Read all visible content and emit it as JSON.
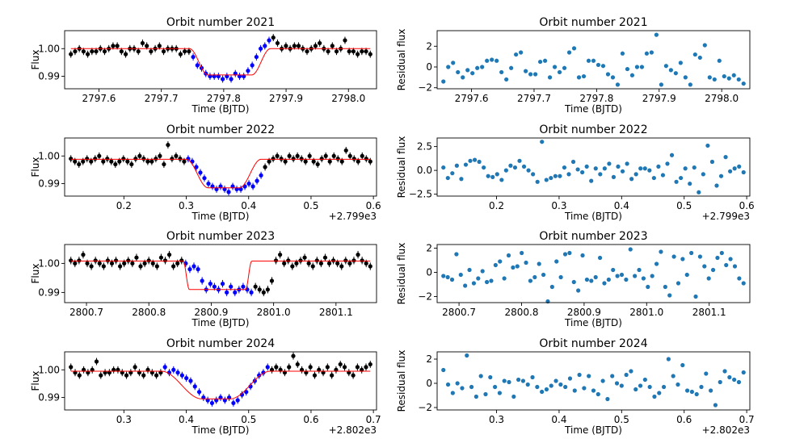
{
  "chart_data": [
    {
      "type": "scatter",
      "title": "Orbit number 2021",
      "xlabel": "Time (BJTD)",
      "ylabel": "Flux",
      "x_offset_label": "",
      "xlim": [
        2797.545,
        2798.045
      ],
      "ylim": [
        0.9855,
        1.0065
      ],
      "xticks": [
        2797.6,
        2797.7,
        2797.8,
        2797.9,
        2798.0
      ],
      "xtick_labels": [
        "2797.6",
        "2797.7",
        "2797.8",
        "2797.9",
        "2798.0"
      ],
      "yticks": [
        0.99,
        1.0
      ],
      "ytick_labels": [
        "0.99",
        "1.00"
      ],
      "model": {
        "baseline": 1.0,
        "depth": 0.0095,
        "t1": 2797.745,
        "t2": 2797.775,
        "t3": 2797.845,
        "t4": 2797.875
      },
      "flux": [
        0.998,
        0.999,
        1.0,
        0.999,
        0.998,
        0.999,
        0.999,
        1.0,
        0.999,
        1.0,
        1.001,
        1.001,
        0.999,
        0.998,
        1.0,
        1.0,
        0.999,
        1.002,
        1.001,
        0.999,
        1.0,
        1.001,
        0.999,
        1.0,
        1.0,
        1.0,
        0.998,
        0.999,
        0.999,
        0.997,
        0.994,
        0.993,
        0.991,
        0.99,
        0.99,
        0.99,
        0.989,
        0.99,
        0.989,
        0.991,
        0.99,
        0.99,
        0.992,
        0.994,
        0.997,
        1.0,
        1.001,
        1.003,
        1.004,
        1.002,
        1.0,
        1.001,
        1.0,
        1.001,
        1.001,
        1.0,
        0.999,
        1.0,
        1.001,
        1.002,
        1.0,
        0.999,
        1.001,
        0.999,
        1.0,
        1.003,
        0.999,
        0.999,
        0.998,
        0.999,
        0.999,
        0.998
      ],
      "flux_err": 0.0013
    },
    {
      "type": "scatter",
      "title": "Orbit number 2021",
      "xlabel": "Time (BJTD)",
      "ylabel": "Residual flux",
      "x_offset_label": "",
      "xlim": [
        2797.545,
        2798.045
      ],
      "ylim": [
        -2.1,
        3.5
      ],
      "xticks": [
        2797.6,
        2797.7,
        2797.8,
        2797.9,
        2798.0
      ],
      "xtick_labels": [
        "2797.6",
        "2797.7",
        "2797.8",
        "2797.9",
        "2798.0"
      ],
      "yticks": [
        -2,
        0,
        2
      ],
      "ytick_labels": [
        "−2",
        "0",
        "2"
      ],
      "residuals": [
        -1.4,
        0.0,
        0.4,
        -0.5,
        -1.0,
        -0.3,
        -0.6,
        -0.1,
        0.0,
        0.6,
        0.7,
        0.6,
        -0.5,
        -1.2,
        -0.1,
        1.2,
        1.4,
        -0.4,
        -0.7,
        -0.7,
        0.5,
        0.6,
        -1.0,
        0.0,
        -0.5,
        -0.1,
        1.4,
        1.8,
        -1.0,
        -0.9,
        0.6,
        0.6,
        0.2,
        0.1,
        -0.7,
        -1.0,
        -1.7,
        1.3,
        -0.2,
        -0.8,
        0.0,
        0.0,
        1.3,
        1.4,
        3.1,
        -1.7,
        0.1,
        -0.3,
        -0.6,
        0.4,
        -1.0,
        -1.7,
        1.2,
        0.9,
        2.1,
        -1.0,
        -1.2,
        0.6,
        -0.9,
        -1.1,
        -0.8,
        -1.2,
        -1.6
      ]
    },
    {
      "type": "scatter",
      "title": "Orbit number 2022",
      "xlabel": "Time (BJTD)",
      "ylabel": "Flux",
      "x_offset_label": "+2.799e3",
      "xlim": [
        0.105,
        0.605
      ],
      "ylim": [
        0.9855,
        1.0065
      ],
      "xticks": [
        0.2,
        0.3,
        0.4,
        0.5,
        0.6
      ],
      "xtick_labels": [
        "0.2",
        "0.3",
        "0.4",
        "0.5",
        "0.6"
      ],
      "yticks": [
        0.99,
        1.0
      ],
      "ytick_labels": [
        "0.99",
        "1.00"
      ],
      "model": {
        "baseline": 0.9988,
        "depth": 0.0103,
        "t1": 0.3,
        "t2": 0.335,
        "t3": 0.385,
        "t4": 0.42
      },
      "flux": [
        0.999,
        0.998,
        0.997,
        0.998,
        0.999,
        0.998,
        0.999,
        1.0,
        0.998,
        0.999,
        0.998,
        0.997,
        0.998,
        0.999,
        0.998,
        0.997,
        0.999,
        1.0,
        0.999,
        0.998,
        0.998,
        0.999,
        1.0,
        0.997,
        1.004,
        0.999,
        1.0,
        0.999,
        0.998,
        0.999,
        0.998,
        0.996,
        0.994,
        0.992,
        0.99,
        0.989,
        0.988,
        0.989,
        0.988,
        0.987,
        0.989,
        0.988,
        0.988,
        0.989,
        0.99,
        0.989,
        0.991,
        0.993,
        0.996,
        0.998,
        0.999,
        1.0,
        0.999,
        0.998,
        1.0,
        0.999,
        1.0,
        0.999,
        0.998,
        1.0,
        0.998,
        0.997,
        0.999,
        1.0,
        0.998,
        1.0,
        0.999,
        0.998,
        1.002,
        1.0,
        0.999,
        0.998,
        1.0,
        0.999,
        0.998
      ],
      "flux_err": 0.0013
    },
    {
      "type": "scatter",
      "title": "Orbit number 2022",
      "xlabel": "Time (BJTD)",
      "ylabel": "Residual flux",
      "x_offset_label": "+2.799e3",
      "xlim": [
        0.105,
        0.605
      ],
      "ylim": [
        -2.7,
        3.4
      ],
      "xticks": [
        0.2,
        0.3,
        0.4,
        0.5,
        0.6
      ],
      "xtick_labels": [
        "0.2",
        "0.3",
        "0.4",
        "0.5",
        "0.6"
      ],
      "yticks": [
        -2.5,
        0.0,
        2.5
      ],
      "ytick_labels": [
        "−2.5",
        "0.0",
        "2.5"
      ],
      "residuals": [
        0.3,
        -0.8,
        -0.3,
        0.5,
        -0.9,
        0.6,
        1.0,
        1.1,
        0.9,
        0.3,
        -0.6,
        -0.7,
        -0.4,
        -1.0,
        0.0,
        0.5,
        0.3,
        1.0,
        0.4,
        0.0,
        -0.4,
        -1.2,
        3.0,
        -1.0,
        -0.8,
        -0.6,
        -0.6,
        0.3,
        -0.4,
        0.9,
        0.1,
        -0.2,
        0.4,
        -1.1,
        0.2,
        -0.4,
        0.2,
        0.7,
        -0.7,
        0.4,
        -0.1,
        0.7,
        -0.9,
        -0.4,
        0.2,
        0.2,
        0.0,
        -0.8,
        0.4,
        -0.5,
        0.7,
        1.6,
        -1.2,
        -0.8,
        0.2,
        -1.4,
        0.3,
        -2.3,
        -0.4,
        2.6,
        0.9,
        -1.6,
        -0.6,
        1.4,
        -0.1,
        0.2,
        0.4,
        -0.2
      ]
    },
    {
      "type": "scatter",
      "title": "Orbit number 2023",
      "xlabel": "Time (BJTD)",
      "ylabel": "Flux",
      "x_offset_label": "",
      "xlim": [
        2800.665,
        2801.165
      ],
      "ylim": [
        0.9865,
        1.0065
      ],
      "xticks": [
        2800.7,
        2800.8,
        2800.9,
        2801.0,
        2801.1
      ],
      "xtick_labels": [
        "2800.7",
        "2800.8",
        "2800.9",
        "2801.0",
        "2801.1"
      ],
      "yticks": [
        0.99,
        1.0
      ],
      "ytick_labels": [
        "0.99",
        "1.00"
      ],
      "model": {
        "baseline": 1.0008,
        "depth": 0.0098,
        "t1": 2800.855,
        "t2": 2800.865,
        "t3": 2800.955,
        "t4": 2800.965
      },
      "flux": [
        1.001,
        1.0,
        1.001,
        1.003,
        1.0,
        0.999,
        1.001,
        1.0,
        0.999,
        1.001,
        1.0,
        1.001,
        0.999,
        1.0,
        1.001,
        1.0,
        1.002,
        0.999,
        1.0,
        1.001,
        1.0,
        0.999,
        1.002,
        1.001,
        1.003,
        0.999,
        1.0,
        1.001,
        1.0,
        0.998,
        0.999,
        0.998,
        0.994,
        0.991,
        0.993,
        0.992,
        0.991,
        0.993,
        0.99,
        0.992,
        0.99,
        0.991,
        0.992,
        0.991,
        0.99,
        0.992,
        0.991,
        0.99,
        0.991,
        0.994,
        1.001,
        1.003,
        1.0,
        1.001,
        0.999,
        1.0,
        1.001,
        1.002,
        1.0,
        0.999,
        1.001,
        1.0,
        1.002,
        1.0,
        1.001,
        1.0,
        0.999,
        1.001,
        1.0,
        1.001,
        1.003,
        1.001,
        1.0,
        0.999
      ],
      "flux_err": 0.0013
    },
    {
      "type": "scatter",
      "title": "Orbit number 2023",
      "xlabel": "Time (BJTD)",
      "ylabel": "Residual flux",
      "x_offset_label": "",
      "xlim": [
        2800.665,
        2801.165
      ],
      "ylim": [
        -2.5,
        2.3
      ],
      "xticks": [
        2800.7,
        2800.8,
        2800.9,
        2801.0,
        2801.1
      ],
      "xtick_labels": [
        "2800.7",
        "2800.8",
        "2800.9",
        "2801.0",
        "2801.1"
      ],
      "yticks": [
        -2,
        0,
        2
      ],
      "ytick_labels": [
        "−2",
        "0",
        "2"
      ],
      "residuals": [
        -0.3,
        -0.4,
        -0.6,
        1.5,
        -0.2,
        -1.1,
        0.2,
        -0.9,
        -0.5,
        0.1,
        -0.8,
        -0.7,
        0.6,
        0.9,
        -0.5,
        1.4,
        0.4,
        0.5,
        1.6,
        0.8,
        -0.7,
        -0.4,
        0.7,
        -0.2,
        -2.4,
        -1.2,
        0.9,
        -0.4,
        1.5,
        1.6,
        -0.8,
        -1.5,
        1.4,
        -0.6,
        -0.7,
        -0.4,
        1.2,
        -0.9,
        -0.6,
        0.2,
        -0.3,
        -0.2,
        -0.6,
        1.9,
        -0.3,
        0.2,
        -0.5,
        -1.2,
        -0.3,
        0.7,
        1.7,
        -1.2,
        -1.9,
        1.3,
        -0.9,
        1.1,
        -0.2,
        1.6,
        -2.0,
        1.3,
        0.5,
        -0.5,
        0.2,
        1.2,
        1.6,
        0.6,
        1.1,
        0.5,
        -0.5,
        -0.9
      ],
      "residual_x_start": 2800.69
    },
    {
      "type": "scatter",
      "title": "Orbit number 2024",
      "xlabel": "Time (BJTD)",
      "ylabel": "Flux",
      "x_offset_label": "+2.802e3",
      "xlim": [
        0.205,
        0.705
      ],
      "ylim": [
        0.9855,
        1.0065
      ],
      "xticks": [
        0.3,
        0.4,
        0.5,
        0.6,
        0.7
      ],
      "xtick_labels": [
        "0.3",
        "0.4",
        "0.5",
        "0.6",
        "0.7"
      ],
      "yticks": [
        0.99,
        1.0
      ],
      "ytick_labels": [
        "0.99",
        "1.00"
      ],
      "model": {
        "baseline": 0.9995,
        "depth": 0.01,
        "t1": 0.36,
        "t2": 0.425,
        "t3": 0.47,
        "t4": 0.535
      },
      "flux": [
        1.001,
        0.999,
        0.998,
        1.0,
        0.999,
        1.0,
        1.003,
        0.998,
        0.999,
        0.999,
        1.0,
        1.0,
        0.999,
        0.998,
        0.999,
        1.001,
        0.999,
        0.998,
        1.0,
        0.999,
        0.998,
        0.999,
        1.001,
        0.999,
        1.0,
        0.999,
        0.998,
        0.997,
        0.996,
        0.994,
        0.992,
        0.99,
        0.989,
        0.988,
        0.989,
        0.99,
        0.989,
        0.99,
        0.988,
        0.989,
        0.991,
        0.992,
        0.994,
        0.996,
        0.998,
        0.999,
        1.001,
        1.0,
        1.001,
        1.0,
        0.999,
        1.001,
        1.005,
        1.002,
        1.0,
        0.999,
        1.001,
        0.998,
        1.0,
        0.999,
        1.001,
        0.998,
        1.0,
        1.002,
        1.001,
        0.999,
        0.998,
        1.001,
        1.0,
        1.001,
        1.002
      ],
      "flux_err": 0.0013
    },
    {
      "type": "scatter",
      "title": "Orbit number 2024",
      "xlabel": "Time (BJTD)",
      "ylabel": "Residual flux",
      "x_offset_label": "+2.802e3",
      "xlim": [
        0.205,
        0.705
      ],
      "ylim": [
        -2.2,
        2.6
      ],
      "xticks": [
        0.3,
        0.4,
        0.5,
        0.6,
        0.7
      ],
      "xtick_labels": [
        "0.3",
        "0.4",
        "0.5",
        "0.6",
        "0.7"
      ],
      "yticks": [
        -2,
        0,
        2
      ],
      "ytick_labels": [
        "−2",
        "0",
        "2"
      ],
      "residuals": [
        1.1,
        -0.1,
        -0.8,
        0.0,
        -0.4,
        2.3,
        -0.3,
        -1.1,
        0.6,
        -0.9,
        0.5,
        -0.3,
        -0.8,
        0.2,
        0.1,
        -1.1,
        0.3,
        0.2,
        -0.1,
        0.5,
        -0.3,
        -0.7,
        -0.5,
        -0.2,
        0.2,
        -0.1,
        -0.3,
        0.4,
        -0.6,
        0.7,
        -0.4,
        0.6,
        -0.6,
        -0.9,
        0.2,
        -1.3,
        0.6,
        0.0,
        -0.2,
        0.7,
        1.0,
        -0.5,
        -0.2,
        0.3,
        -0.3,
        -1.1,
        -0.8,
        -0.3,
        2.0,
        0.6,
        -0.1,
        1.5,
        -0.6,
        -0.7,
        -0.9,
        -0.3,
        0.8,
        -0.6,
        -1.8,
        0.1,
        1.0,
        0.5,
        0.3,
        0.1,
        0.9
      ]
    }
  ]
}
